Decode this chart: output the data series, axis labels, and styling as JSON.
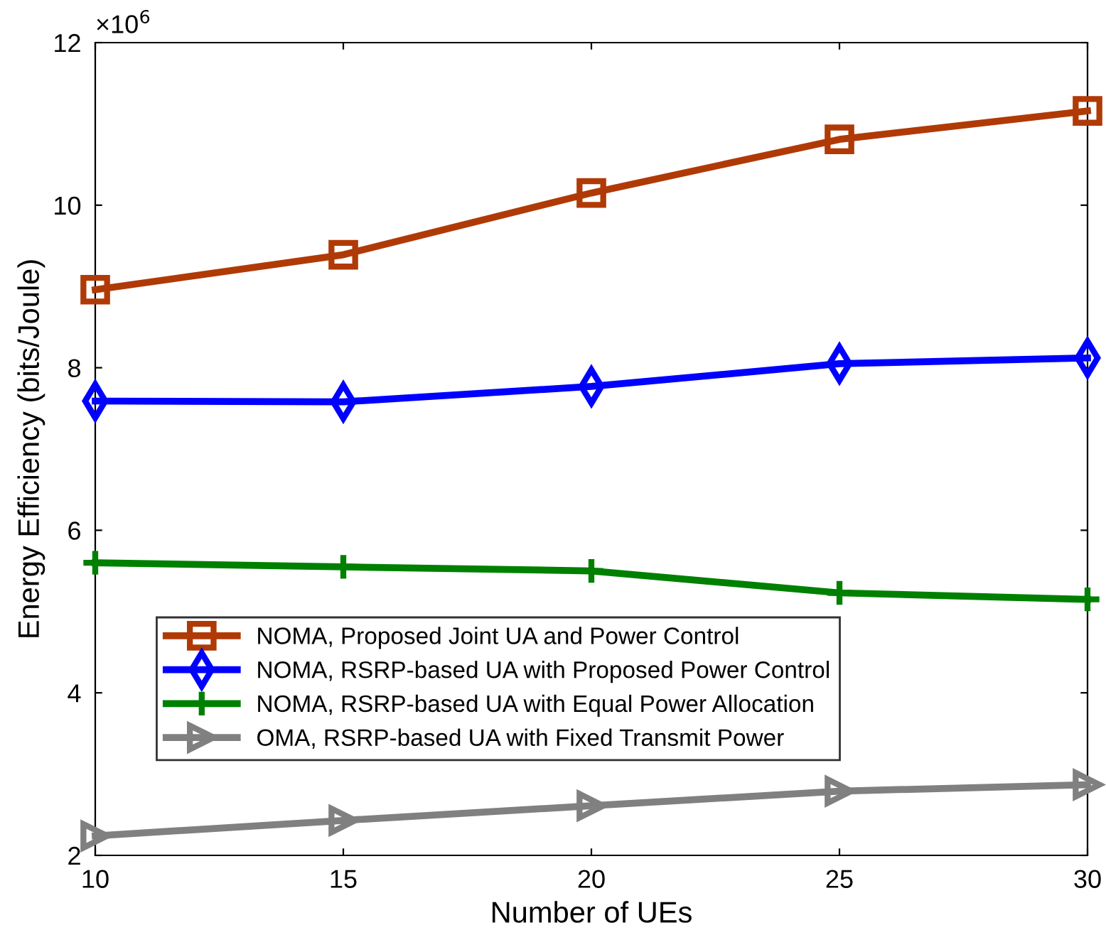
{
  "chart_data": {
    "type": "line",
    "xlabel": "Number of UEs",
    "ylabel": "Energy Efficiency (bits/Joule)",
    "x": [
      10,
      15,
      20,
      25,
      30
    ],
    "xlim": [
      10,
      30
    ],
    "xticks": [
      10,
      15,
      20,
      25,
      30
    ],
    "ylim": [
      2,
      12
    ],
    "yticks": [
      2,
      4,
      6,
      8,
      10,
      12
    ],
    "annotations": [
      "×10$^{6}$"
    ],
    "legend": "left",
    "line_style": "solid",
    "series": [
      {
        "name": "NOMA, Proposed Joint UA and Power Control",
        "color": "#b03a06",
        "marker": "square",
        "values": [
          8.96,
          9.39,
          10.15,
          10.81,
          11.16
        ]
      },
      {
        "name": "NOMA, RSRP-based UA with Proposed Power Control",
        "color": "#0000ff",
        "marker": "diamond",
        "values": [
          7.59,
          7.58,
          7.77,
          8.05,
          8.12
        ]
      },
      {
        "name": "NOMA, RSRP-based UA with Equal Power Allocation",
        "color": "#008000",
        "marker": "cross",
        "values": [
          5.6,
          5.55,
          5.5,
          5.23,
          5.15
        ]
      },
      {
        "name": "OMA, RSRP-based UA with Fixed Transmit Power",
        "color": "#808080",
        "marker": "triangle",
        "values": [
          2.24,
          2.43,
          2.61,
          2.79,
          2.87
        ]
      }
    ]
  }
}
